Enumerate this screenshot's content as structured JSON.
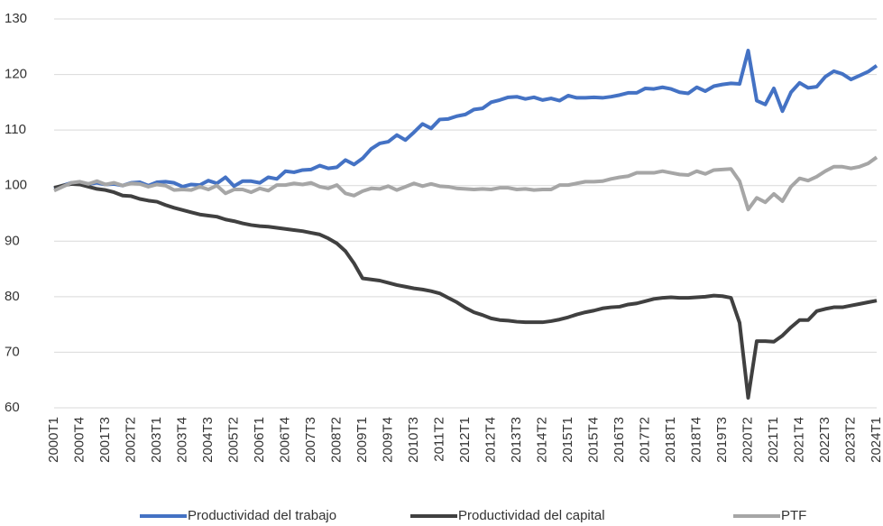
{
  "chart_data": {
    "type": "line",
    "categories": [
      "2000T1",
      null,
      null,
      "2000T4",
      null,
      null,
      "2001T3",
      null,
      null,
      "2002T2",
      null,
      null,
      "2003T1",
      null,
      null,
      "2003T4",
      null,
      null,
      "2004T3",
      null,
      null,
      "2005T2",
      null,
      null,
      "2006T1",
      null,
      null,
      "2006T4",
      null,
      null,
      "2007T3",
      null,
      null,
      "2008T2",
      null,
      null,
      "2009T1",
      null,
      null,
      "2009T4",
      null,
      null,
      "2010T3",
      null,
      null,
      "2011T2",
      null,
      null,
      "2012T1",
      null,
      null,
      "2012T4",
      null,
      null,
      "2013T3",
      null,
      null,
      "2014T2",
      null,
      null,
      "2015T1",
      null,
      null,
      "2015T4",
      null,
      null,
      "2016T3",
      null,
      null,
      "2017T2",
      null,
      null,
      "2018T1",
      null,
      null,
      "2018T4",
      null,
      null,
      "2019T3",
      null,
      null,
      "2020T2",
      null,
      null,
      "2021T1",
      null,
      null,
      "2021T4",
      null,
      null,
      "2022T3",
      null,
      null,
      "2023T2",
      null,
      null,
      "2024T1"
    ],
    "series": [
      {
        "name": "Productividad del trabajo",
        "color": "#4472c4",
        "values": [
          99.5,
          100,
          100.5,
          100.5,
          100.3,
          100.5,
          100.2,
          100.3,
          100,
          100.5,
          100.6,
          100,
          100.6,
          100.7,
          100.5,
          99.8,
          100.2,
          100.1,
          100.9,
          100.4,
          101.5,
          99.9,
          100.8,
          100.8,
          100.5,
          101.5,
          101.2,
          102.6,
          102.4,
          102.8,
          102.9,
          103.6,
          103.1,
          103.3,
          104.6,
          103.8,
          104.9,
          106.6,
          107.6,
          107.9,
          109.1,
          108.2,
          109.6,
          111.1,
          110.3,
          111.9,
          112,
          112.5,
          112.8,
          113.7,
          113.9,
          115,
          115.4,
          115.9,
          116,
          115.6,
          115.9,
          115.4,
          115.7,
          115.3,
          116.2,
          115.8,
          115.8,
          115.9,
          115.8,
          116,
          116.3,
          116.7,
          116.7,
          117.5,
          117.4,
          117.7,
          117.4,
          116.8,
          116.6,
          117.7,
          117,
          117.9,
          118.2,
          118.4,
          118.3,
          124.3,
          115.3,
          114.6,
          117.5,
          113.4,
          116.8,
          118.5,
          117.6,
          117.8,
          119.6,
          120.6,
          120.1,
          119.1,
          119.8,
          120.5,
          121.6
        ]
      },
      {
        "name": "Productividad del capital",
        "color": "#404040",
        "values": [
          99.6,
          100,
          100.3,
          100.2,
          99.8,
          99.4,
          99.2,
          98.8,
          98.2,
          98.1,
          97.6,
          97.3,
          97.1,
          96.5,
          96,
          95.6,
          95.2,
          94.8,
          94.6,
          94.4,
          93.9,
          93.6,
          93.2,
          92.9,
          92.7,
          92.6,
          92.4,
          92.2,
          92,
          91.8,
          91.5,
          91.2,
          90.5,
          89.6,
          88.2,
          86,
          83.3,
          83.1,
          82.9,
          82.5,
          82.1,
          81.8,
          81.5,
          81.3,
          81,
          80.6,
          79.8,
          79,
          78,
          77.2,
          76.7,
          76.1,
          75.8,
          75.7,
          75.5,
          75.4,
          75.4,
          75.4,
          75.6,
          75.9,
          76.3,
          76.8,
          77.2,
          77.5,
          77.9,
          78.1,
          78.2,
          78.6,
          78.8,
          79.2,
          79.6,
          79.8,
          79.9,
          79.8,
          79.8,
          79.9,
          80,
          80.2,
          80.1,
          79.8,
          75.3,
          61.8,
          72,
          72,
          71.9,
          73,
          74.5,
          75.8,
          75.8,
          77.4,
          77.8,
          78.1,
          78.1,
          78.4,
          78.7,
          79,
          79.3
        ]
      },
      {
        "name": "PTF",
        "color": "#a6a6a6",
        "values": [
          99.1,
          99.8,
          100.5,
          100.7,
          100.3,
          100.8,
          100.2,
          100.5,
          100,
          100.4,
          100.3,
          99.8,
          100.2,
          100,
          99.2,
          99.3,
          99.2,
          99.8,
          99.3,
          100,
          98.6,
          99.3,
          99.3,
          98.8,
          99.5,
          99.1,
          100.1,
          100.1,
          100.4,
          100.2,
          100.5,
          99.8,
          99.5,
          100.1,
          98.6,
          98.2,
          99,
          99.5,
          99.4,
          99.9,
          99.2,
          99.8,
          100.4,
          99.9,
          100.3,
          99.9,
          99.8,
          99.5,
          99.4,
          99.3,
          99.4,
          99.3,
          99.6,
          99.6,
          99.3,
          99.4,
          99.2,
          99.3,
          99.3,
          100.1,
          100.1,
          100.4,
          100.7,
          100.7,
          100.8,
          101.2,
          101.5,
          101.7,
          102.3,
          102.3,
          102.3,
          102.6,
          102.3,
          102,
          101.9,
          102.6,
          102.1,
          102.8,
          102.9,
          103,
          100.8,
          95.7,
          97.8,
          97,
          98.5,
          97.2,
          99.8,
          101.3,
          100.9,
          101.6,
          102.6,
          103.4,
          103.4,
          103.1,
          103.4,
          104,
          105.1
        ]
      }
    ],
    "ylim": [
      60,
      130
    ],
    "yticks": [
      60,
      70,
      80,
      90,
      100,
      110,
      120,
      130
    ],
    "grid": true,
    "legend": "bottom"
  }
}
